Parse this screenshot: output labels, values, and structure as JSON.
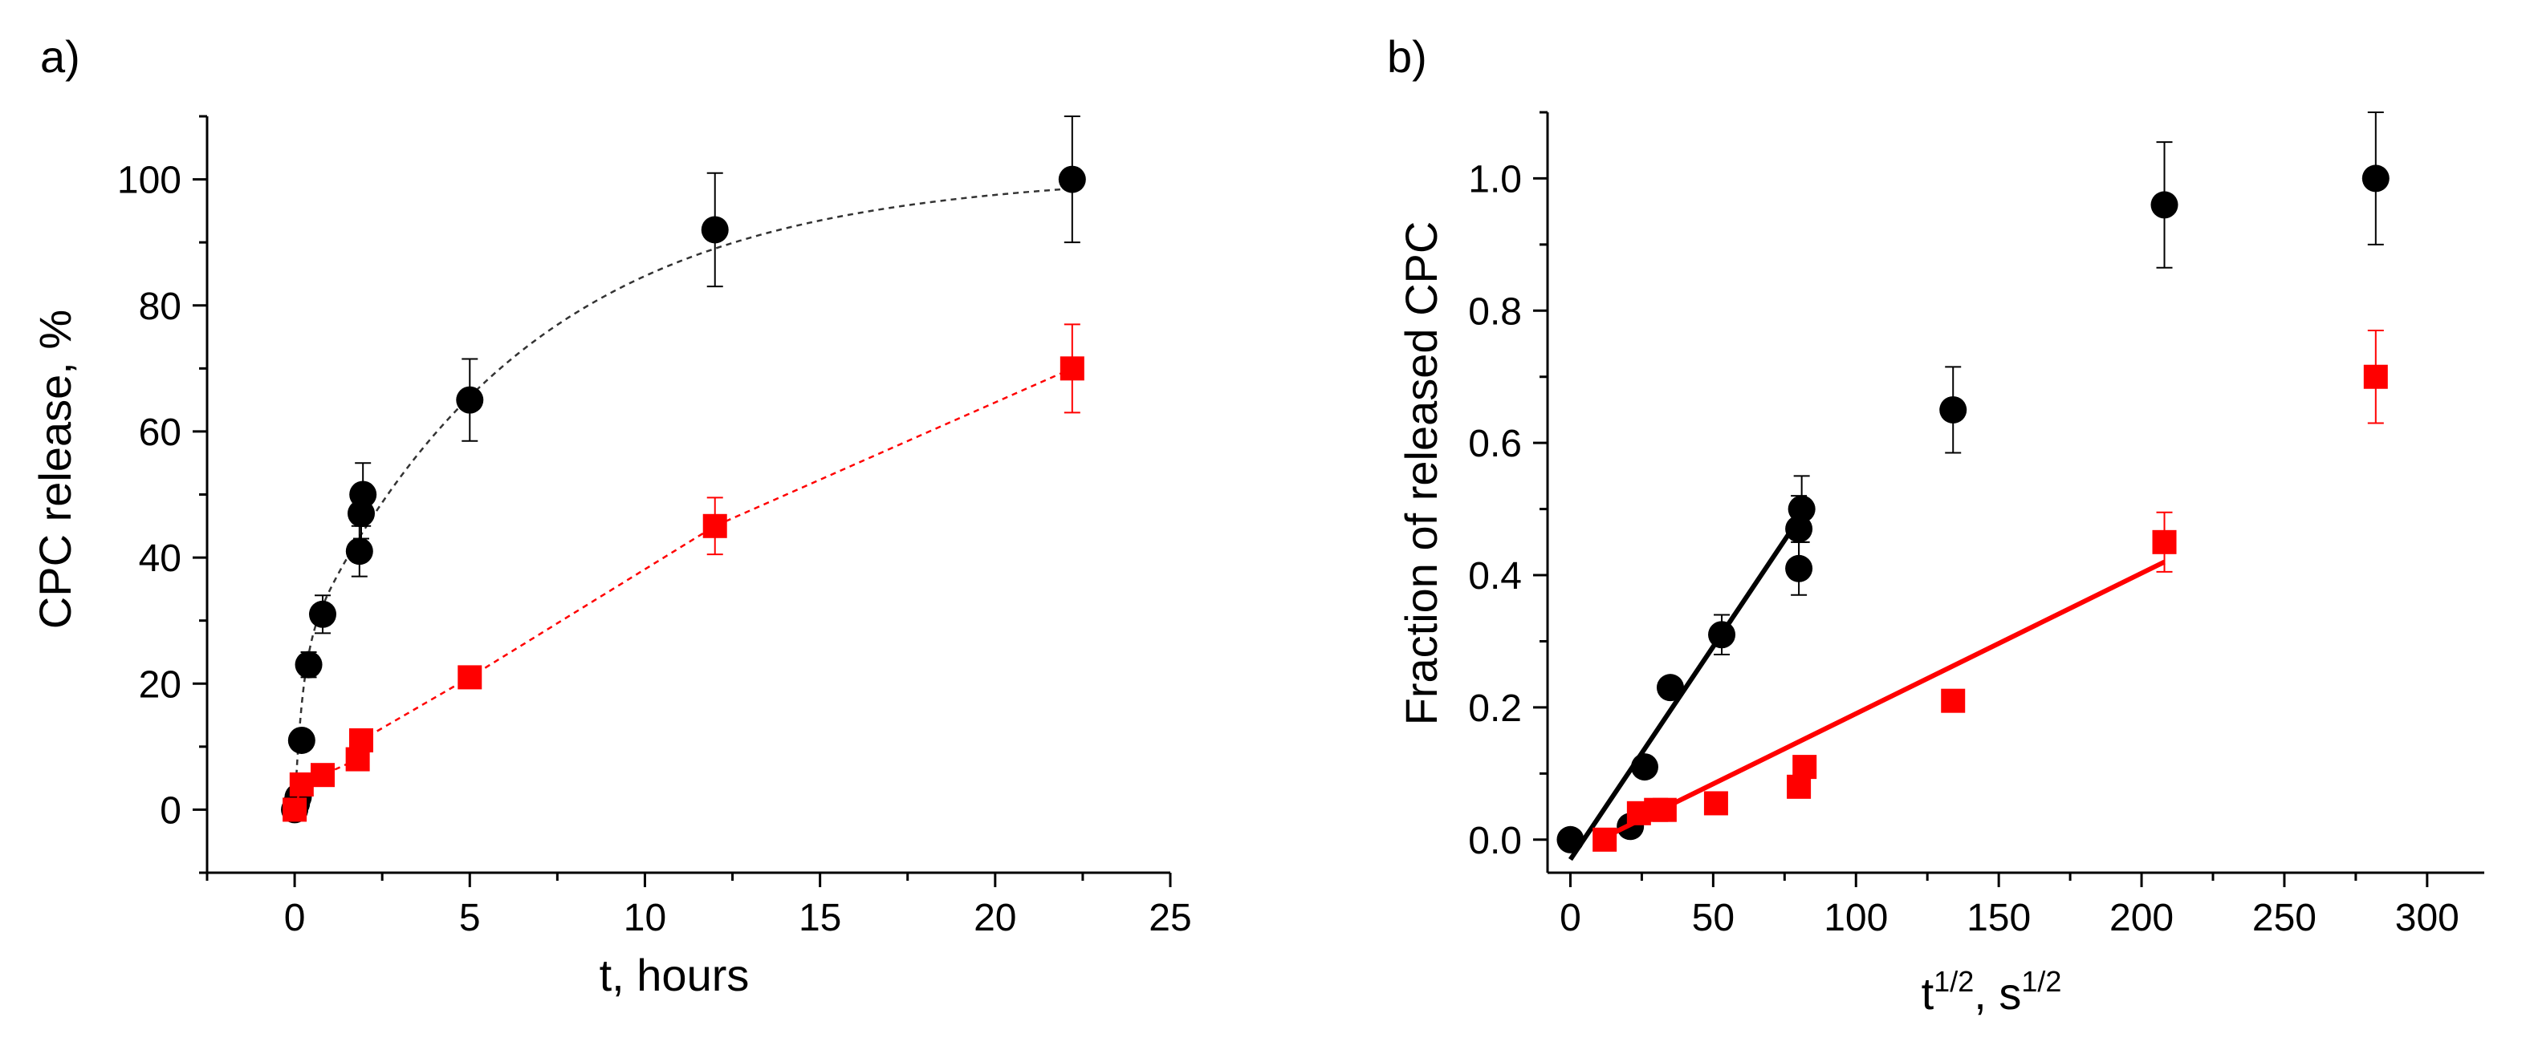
{
  "chart_data": [
    {
      "type": "scatter",
      "panel_label": "a)",
      "xlabel": "t, hours",
      "ylabel": "CPC release, %",
      "xlim": [
        -2.5,
        25
      ],
      "ylim": [
        -10,
        110
      ],
      "xticks": [
        0,
        5,
        10,
        15,
        20,
        25
      ],
      "yticks": [
        0,
        20,
        40,
        60,
        80,
        100
      ],
      "xtick_labels": [
        "0",
        "5",
        "10",
        "15",
        "20",
        "25"
      ],
      "ytick_labels": [
        "0",
        "20",
        "40",
        "60",
        "80",
        "100"
      ],
      "series": [
        {
          "name": "black",
          "marker": "circle",
          "color": "#000000",
          "x": [
            0.0,
            0.05,
            0.1,
            0.2,
            0.4,
            0.8,
            1.85,
            1.9,
            1.95,
            5.0,
            12.0,
            22.2
          ],
          "y": [
            0,
            1,
            2,
            11,
            23,
            31,
            41,
            47,
            50,
            65,
            92,
            100
          ],
          "yerr": [
            0,
            0,
            0,
            1.5,
            2,
            3,
            4,
            4,
            5,
            6.5,
            9,
            10
          ],
          "fit": {
            "style": "dashed",
            "color": "#333333",
            "model": "exponential",
            "A": 101,
            "k": 0.2,
            "c": 0.55,
            "x_range": [
              0.05,
              22.2
            ]
          }
        },
        {
          "name": "red",
          "marker": "square",
          "color": "#ff0000",
          "x": [
            0.0,
            0.2,
            0.8,
            1.8,
            1.9,
            5.0,
            12.0,
            22.2
          ],
          "y": [
            0,
            4,
            5.5,
            8,
            11,
            21,
            45,
            70
          ],
          "yerr": [
            0,
            0.5,
            0.5,
            1,
            1.5,
            1.5,
            4.5,
            7
          ],
          "fit": {
            "style": "dashed",
            "color": "#ff0000",
            "model": "linear_segments"
          }
        }
      ]
    },
    {
      "type": "scatter",
      "panel_label": "b)",
      "xlabel_base": "t",
      "xlabel_sup1": "1/2",
      "xlabel_mid": ", s",
      "xlabel_sup2": "1/2",
      "ylabel": "Fraction of released CPC",
      "xlim": [
        -8,
        320
      ],
      "ylim": [
        -0.05,
        1.1
      ],
      "xticks": [
        0,
        50,
        100,
        150,
        200,
        250,
        300
      ],
      "yticks": [
        0.0,
        0.2,
        0.4,
        0.6,
        0.8,
        1.0
      ],
      "xtick_labels": [
        "0",
        "50",
        "100",
        "150",
        "200",
        "250",
        "300"
      ],
      "ytick_labels": [
        "0.0",
        "0.2",
        "0.4",
        "0.6",
        "0.8",
        "1.0"
      ],
      "series": [
        {
          "name": "black",
          "marker": "circle",
          "color": "#000000",
          "x": [
            0,
            21,
            26,
            35,
            53,
            80,
            80,
            81,
            134,
            208,
            282
          ],
          "y": [
            0,
            0.02,
            0.11,
            0.23,
            0.31,
            0.41,
            0.47,
            0.5,
            0.65,
            0.96,
            1.0
          ],
          "yerr": [
            0,
            0,
            0,
            0.01,
            0.03,
            0.04,
            0.05,
            0.05,
            0.065,
            0.095,
            0.1
          ],
          "fit_line": {
            "color": "#000000",
            "x": [
              0,
              80
            ],
            "y": [
              -0.03,
              0.485
            ]
          }
        },
        {
          "name": "red",
          "marker": "square",
          "color": "#ff0000",
          "x": [
            12,
            24,
            30,
            33,
            51,
            80,
            82,
            134,
            208,
            282
          ],
          "y": [
            0,
            0.04,
            0.045,
            0.045,
            0.055,
            0.08,
            0.11,
            0.21,
            0.45,
            0.7
          ],
          "yerr": [
            0,
            0,
            0,
            0,
            0.005,
            0.01,
            0.015,
            0.015,
            0.045,
            0.07
          ],
          "fit_line": {
            "color": "#ff0000",
            "x": [
              15,
              208
            ],
            "y": [
              0.01,
              0.42
            ]
          }
        }
      ]
    }
  ]
}
